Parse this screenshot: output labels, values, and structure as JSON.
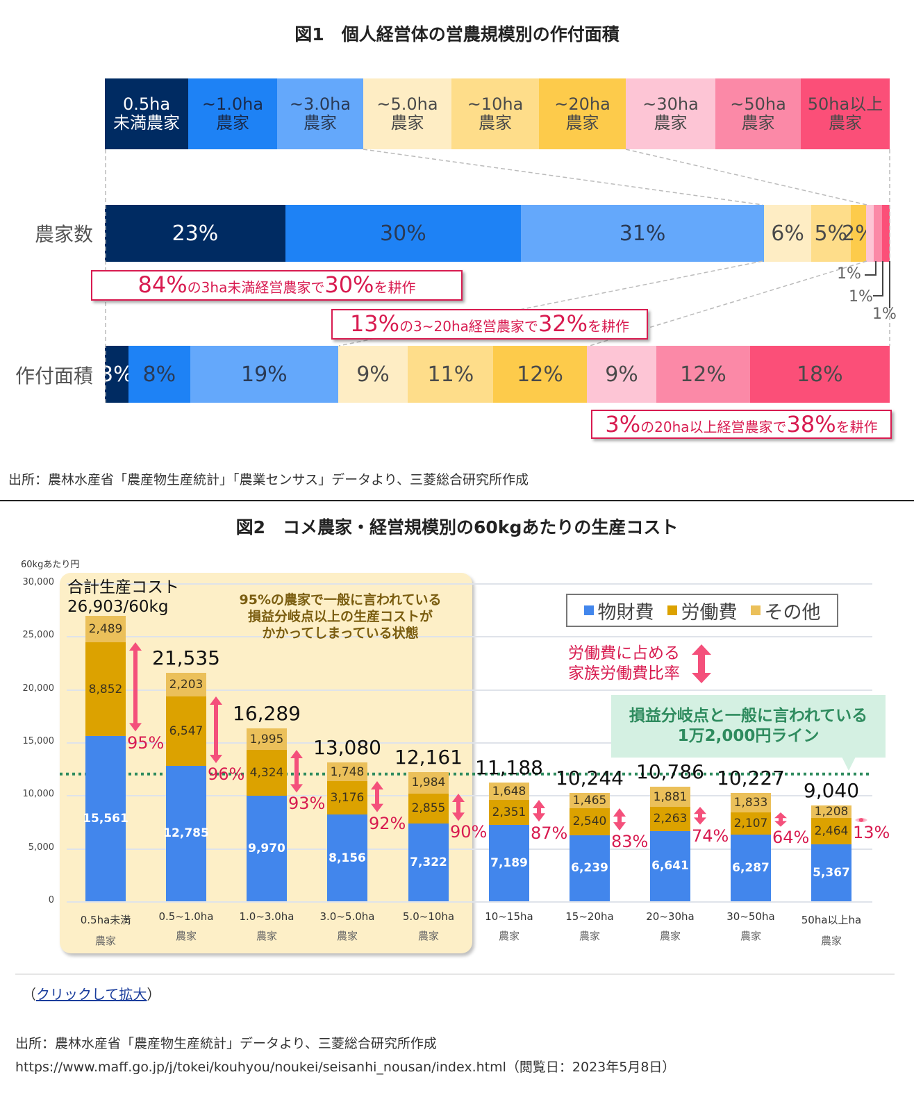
{
  "fig1": {
    "title": "図1　個人経営体の営農規模別の作付面積",
    "categories": [
      {
        "line1": "0.5ha",
        "line2": "未満農家",
        "color": "#002b62",
        "text_color": "#ffffff"
      },
      {
        "line1": "~1.0ha",
        "line2": "農家",
        "color": "#1e82f5",
        "text_color": "#1a2a4a"
      },
      {
        "line1": "~3.0ha",
        "line2": "農家",
        "color": "#64a8fb",
        "text_color": "#2a3a55"
      },
      {
        "line1": "~5.0ha",
        "line2": "農家",
        "color": "#feedc4",
        "text_color": "#4a4a4a"
      },
      {
        "line1": "~10ha",
        "line2": "農家",
        "color": "#fedd8a",
        "text_color": "#4a4a4a"
      },
      {
        "line1": "~20ha",
        "line2": "農家",
        "color": "#fdcb4b",
        "text_color": "#4a4a4a"
      },
      {
        "line1": "~30ha",
        "line2": "農家",
        "color": "#fdc5d5",
        "text_color": "#4a4a4a"
      },
      {
        "line1": "~50ha",
        "line2": "農家",
        "color": "#fb89a7",
        "text_color": "#4a4a4a"
      },
      {
        "line1": "50ha以上",
        "line2": "農家",
        "color": "#fb4f78",
        "text_color": "#4a4a4a"
      }
    ],
    "rows": [
      {
        "label": "農家数",
        "values": [
          23,
          30,
          31,
          6,
          5,
          2,
          1,
          1,
          1
        ],
        "labels": [
          "23%",
          "30%",
          "31%",
          "6%",
          "5%",
          "2%",
          "",
          "",
          ""
        ],
        "outside_labels": [
          "1%",
          "1%",
          "1%"
        ]
      },
      {
        "label": "作付面積",
        "values": [
          3,
          8,
          19,
          9,
          11,
          12,
          9,
          12,
          18
        ],
        "labels": [
          "3%",
          "8%",
          "19%",
          "9%",
          "11%",
          "12%",
          "9%",
          "12%",
          "18%"
        ]
      }
    ],
    "callouts": [
      {
        "big1": "84%",
        "small1": "の3ha未満経営農家で",
        "big2": "30%",
        "small2": "を耕作"
      },
      {
        "big1": "13%",
        "small1": "の3~20ha経営農家で",
        "big2": "32%",
        "small2": "を耕作"
      },
      {
        "big1": "3%",
        "small1": "の20ha以上経営農家で",
        "big2": "38%",
        "small2": "を耕作"
      }
    ],
    "source": "出所：農林水産省「農産物生産統計」「農業センサス」データより、三菱総合研究所作成"
  },
  "fig2": {
    "title": "図2　コメ農家・経営規模別の60kgあたりの生産コスト",
    "panel_note": "95%の農家で一般に言われている\n損益分岐点以上の生産コストが\nかかってしまっている状態",
    "first_total_caption_line1": "合計生産コスト",
    "first_total_caption_line2": "26,903/60kg",
    "family_labor_note_line1": "労働費に占める",
    "family_labor_note_line2": "家族労働費比率",
    "breakeven_note_line1": "損益分岐点と一般に言われている",
    "breakeven_note_line2": "1万2,000円ライン",
    "click_prefix": "（",
    "click_link": "クリックして拡大",
    "click_suffix": "）",
    "source_line1": "出所：農林水産省「農産物生産統計」データより、三菱総合研究所作成",
    "source_line2": "https://www.maff.go.jp/j/tokei/kouhyou/noukei/seisanhi_nousan/index.html（閲覧日：2023年5月8日）"
  },
  "chart_data": [
    {
      "type": "bar",
      "orientation": "horizontal-100%-stacked",
      "title": "図1　個人経営体の営農規模別の作付面積",
      "categories": [
        "農家数",
        "作付面積"
      ],
      "series": [
        {
          "name": "0.5ha未満農家",
          "values": [
            23,
            3
          ]
        },
        {
          "name": "~1.0ha農家",
          "values": [
            30,
            8
          ]
        },
        {
          "name": "~3.0ha農家",
          "values": [
            31,
            19
          ]
        },
        {
          "name": "~5.0ha農家",
          "values": [
            6,
            9
          ]
        },
        {
          "name": "~10ha農家",
          "values": [
            5,
            11
          ]
        },
        {
          "name": "~20ha農家",
          "values": [
            2,
            12
          ]
        },
        {
          "name": "~30ha農家",
          "values": [
            1,
            9
          ]
        },
        {
          "name": "~50ha農家",
          "values": [
            1,
            12
          ]
        },
        {
          "name": "50ha以上農家",
          "values": [
            1,
            18
          ]
        }
      ],
      "unit": "%",
      "legend": "top"
    },
    {
      "type": "bar",
      "orientation": "vertical-stacked",
      "title": "図2　コメ農家・経営規模別の60kgあたりの生産コスト",
      "ylabel": "60kgあたり円",
      "ylim": [
        0,
        30000
      ],
      "yticks": [
        "0",
        "5,000",
        "10,000",
        "15,000",
        "20,000",
        "25,000",
        "30,000"
      ],
      "ytick_values": [
        0,
        5000,
        10000,
        15000,
        20000,
        25000,
        30000
      ],
      "categories": [
        {
          "line1": "0.5ha未満",
          "line2": "農家"
        },
        {
          "line1": "0.5~1.0ha",
          "line2": "農家"
        },
        {
          "line1": "1.0~3.0ha",
          "line2": "農家"
        },
        {
          "line1": "3.0~5.0ha",
          "line2": "農家"
        },
        {
          "line1": "5.0~10ha",
          "line2": "農家"
        },
        {
          "line1": "10~15ha",
          "line2": "農家"
        },
        {
          "line1": "15~20ha",
          "line2": "農家"
        },
        {
          "line1": "20~30ha",
          "line2": "農家"
        },
        {
          "line1": "30~50ha",
          "line2": "農家"
        },
        {
          "line1": "50ha以上ha",
          "line2": "農家"
        }
      ],
      "series": [
        {
          "name": "物財費",
          "color": "#4286ec",
          "values": [
            15561,
            12785,
            9970,
            8156,
            7322,
            7189,
            6239,
            6641,
            6287,
            5367
          ],
          "labels": [
            "15,561",
            "12,785",
            "9,970",
            "8,156",
            "7,322",
            "7,189",
            "6,239",
            "6,641",
            "6,287",
            "5,367"
          ]
        },
        {
          "name": "労働費",
          "color": "#dca200",
          "values": [
            8852,
            6547,
            4324,
            3176,
            2855,
            2351,
            2540,
            2263,
            2107,
            2464
          ],
          "labels": [
            "8,852",
            "6,547",
            "4,324",
            "3,176",
            "2,855",
            "2,351",
            "2,540",
            "2,263",
            "2,107",
            "2,464"
          ]
        },
        {
          "name": "その他",
          "color": "#ebc05a",
          "values": [
            2489,
            2203,
            1995,
            1748,
            1984,
            1648,
            1465,
            1881,
            1833,
            1208
          ],
          "labels": [
            "2,489",
            "2,203",
            "1,995",
            "1,748",
            "1,984",
            "1,648",
            "1,465",
            "1,881",
            "1,833",
            "1,208"
          ]
        }
      ],
      "totals": [
        26903,
        21535,
        16289,
        13080,
        12161,
        11188,
        10244,
        10786,
        10227,
        9040
      ],
      "total_labels": [
        "26,903/60kg",
        "21,535",
        "16,289",
        "13,080",
        "12,161",
        "11,188",
        "10,244",
        "10,786",
        "10,227",
        "9,040"
      ],
      "family_labor_ratio": [
        95,
        96,
        93,
        92,
        90,
        87,
        83,
        74,
        64,
        13
      ],
      "family_labor_ratio_labels": [
        "95%",
        "96%",
        "93%",
        "92%",
        "90%",
        "87%",
        "83%",
        "74%",
        "64%",
        "13%"
      ],
      "reference_line": {
        "value": 12000,
        "label": "1万2,000円ライン",
        "color": "#2e8b5e",
        "style": "dotted"
      },
      "legend": "top-right",
      "grid": true
    }
  ]
}
